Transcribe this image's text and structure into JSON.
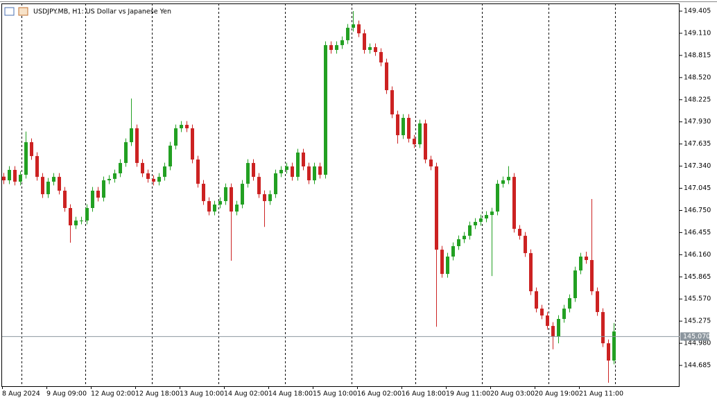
{
  "chart_data": {
    "type": "candlestick",
    "title": "USDJPY.MB, H1:  US Dollar vs Japanese Yen",
    "categories": [
      "8 Aug 2024",
      null,
      null,
      null,
      null,
      null,
      null,
      null,
      "9 Aug 09:00",
      null,
      null,
      null,
      null,
      null,
      null,
      null,
      "12 Aug 02:00",
      null,
      null,
      null,
      null,
      null,
      null,
      null,
      "12 Aug 18:00",
      null,
      null,
      null,
      null,
      null,
      null,
      null,
      "13 Aug 10:00",
      null,
      null,
      null,
      null,
      null,
      null,
      null,
      "14 Aug 02:00",
      null,
      null,
      null,
      null,
      null,
      null,
      null,
      "14 Aug 18:00",
      null,
      null,
      null,
      null,
      null,
      null,
      null,
      "15 Aug 10:00",
      null,
      null,
      null,
      null,
      null,
      null,
      null,
      "16 Aug 02:00",
      null,
      null,
      null,
      null,
      null,
      null,
      null,
      "16 Aug 18:00",
      null,
      null,
      null,
      null,
      null,
      null,
      null,
      "19 Aug 11:00",
      null,
      null,
      null,
      null,
      null,
      null,
      null,
      "20 Aug 03:00",
      null,
      null,
      null,
      null,
      null,
      null,
      null,
      "20 Aug 19:00",
      null,
      null,
      null,
      null,
      null,
      null,
      null,
      "21 Aug 11:00",
      null,
      null,
      null,
      null,
      null,
      null
    ],
    "open": [
      147.2,
      147.151,
      147.29,
      147.133,
      147.225,
      147.659,
      147.474,
      147.197,
      146.966,
      147.133,
      147.197,
      147.013,
      146.782,
      146.551,
      146.615,
      146.615,
      146.782,
      147.013,
      146.92,
      147.151,
      147.17,
      147.244,
      147.382,
      147.659,
      147.844,
      147.382,
      147.244,
      147.17,
      147.133,
      147.197,
      147.336,
      147.613,
      147.844,
      147.89,
      147.844,
      147.428,
      147.105,
      146.874,
      146.735,
      146.828,
      146.874,
      147.059,
      146.735,
      146.828,
      147.105,
      147.382,
      147.197,
      146.966,
      146.874,
      146.966,
      147.244,
      147.29,
      147.336,
      147.197,
      147.521,
      147.336,
      147.151,
      147.336,
      147.225,
      148.952,
      148.888,
      148.952,
      149.017,
      149.183,
      149.229,
      149.109,
      148.888,
      148.925,
      148.86,
      148.721,
      148.352,
      148.029,
      147.752,
      147.983,
      147.705,
      147.631,
      147.909,
      147.428,
      147.336,
      146.227,
      145.904,
      146.135,
      146.274,
      146.366,
      146.412,
      146.551,
      146.597,
      146.643,
      146.689,
      146.735,
      147.105,
      147.151,
      147.197,
      146.505,
      146.412,
      146.181,
      145.673,
      145.442,
      145.35,
      145.211,
      145.073,
      145.304,
      145.442,
      145.581,
      145.95,
      146.135,
      146.089,
      145.673,
      145.396,
      144.98,
      144.75
    ],
    "high": [
      147.25,
      147.34,
      147.34,
      147.275,
      147.8,
      147.709,
      147.524,
      147.247,
      147.183,
      147.247,
      147.247,
      147.063,
      146.832,
      146.665,
      146.665,
      146.832,
      147.063,
      147.063,
      147.201,
      147.22,
      147.294,
      147.432,
      147.709,
      148.24,
      147.894,
      147.432,
      147.294,
      147.22,
      147.247,
      147.386,
      147.663,
      147.894,
      147.94,
      147.94,
      147.894,
      147.478,
      147.155,
      146.924,
      146.878,
      146.924,
      147.109,
      147.109,
      146.878,
      147.155,
      147.432,
      147.432,
      147.247,
      147.016,
      147.016,
      147.294,
      147.34,
      147.386,
      147.386,
      147.571,
      147.571,
      147.386,
      147.386,
      147.386,
      149.002,
      149.002,
      149.002,
      149.067,
      149.233,
      149.405,
      149.279,
      149.159,
      148.975,
      148.975,
      148.91,
      148.771,
      148.402,
      148.079,
      148.033,
      148.033,
      147.755,
      147.959,
      147.959,
      147.478,
      147.386,
      146.277,
      146.185,
      146.324,
      146.416,
      146.462,
      146.601,
      146.647,
      146.693,
      146.739,
      146.785,
      147.155,
      147.201,
      147.34,
      147.247,
      146.555,
      146.462,
      146.231,
      145.723,
      145.492,
      145.4,
      145.261,
      145.354,
      145.492,
      145.631,
      146.0,
      146.185,
      146.2,
      146.902,
      145.723,
      145.446,
      145.03,
      145.25
    ],
    "low": [
      147.101,
      147.101,
      147.083,
      147.083,
      147.175,
      147.424,
      147.147,
      146.916,
      146.916,
      147.083,
      146.963,
      146.732,
      146.32,
      146.501,
      146.565,
      146.565,
      146.732,
      146.87,
      146.87,
      147.101,
      147.12,
      147.194,
      147.332,
      147.609,
      147.332,
      147.194,
      147.12,
      147.083,
      147.083,
      147.147,
      147.286,
      147.563,
      147.794,
      147.794,
      147.378,
      147.055,
      146.824,
      146.685,
      146.685,
      146.778,
      146.824,
      146.08,
      146.685,
      146.778,
      147.055,
      147.147,
      146.916,
      146.53,
      146.824,
      146.916,
      147.194,
      147.24,
      147.147,
      147.147,
      147.286,
      147.101,
      147.101,
      147.175,
      147.175,
      148.838,
      148.838,
      148.902,
      148.967,
      149.133,
      149.059,
      148.838,
      148.838,
      148.81,
      148.671,
      148.302,
      147.979,
      147.64,
      147.702,
      147.655,
      147.581,
      147.581,
      147.378,
      147.286,
      145.2,
      145.854,
      145.854,
      146.085,
      146.224,
      146.316,
      146.362,
      146.501,
      146.547,
      146.593,
      145.876,
      146.685,
      147.055,
      147.101,
      146.455,
      146.362,
      146.131,
      145.623,
      145.392,
      145.3,
      145.161,
      144.9,
      144.98,
      145.254,
      145.392,
      145.531,
      145.9,
      146.039,
      145.623,
      145.346,
      144.93,
      144.454,
      144.7
    ],
    "close": [
      147.151,
      147.29,
      147.133,
      147.225,
      147.659,
      147.474,
      147.197,
      146.966,
      147.133,
      147.197,
      147.013,
      146.782,
      146.551,
      146.615,
      146.615,
      146.782,
      147.013,
      146.92,
      147.151,
      147.17,
      147.244,
      147.382,
      147.659,
      147.844,
      147.382,
      147.244,
      147.17,
      147.133,
      147.197,
      147.336,
      147.613,
      147.844,
      147.89,
      147.844,
      147.428,
      147.105,
      146.874,
      146.735,
      146.828,
      146.874,
      147.059,
      146.735,
      146.828,
      147.105,
      147.382,
      147.197,
      146.966,
      146.874,
      146.966,
      147.244,
      147.29,
      147.336,
      147.197,
      147.521,
      147.336,
      147.151,
      147.336,
      147.225,
      148.952,
      148.888,
      148.952,
      149.017,
      149.183,
      149.229,
      149.109,
      148.888,
      148.925,
      148.86,
      148.721,
      148.352,
      148.029,
      147.752,
      147.983,
      147.705,
      147.631,
      147.909,
      147.428,
      147.336,
      146.227,
      145.904,
      146.135,
      146.274,
      146.366,
      146.412,
      146.551,
      146.597,
      146.643,
      146.689,
      146.735,
      147.105,
      147.151,
      147.197,
      146.505,
      146.412,
      146.181,
      145.673,
      145.442,
      145.35,
      145.211,
      145.073,
      145.304,
      145.442,
      145.581,
      145.95,
      146.135,
      146.089,
      145.673,
      145.396,
      144.98,
      144.75,
      145.137
    ],
    "up_color": "#22a022",
    "down_color": "#cc2222",
    "ylim": [
      144.408,
      149.507
    ],
    "yticks": [
      149.405,
      {
        "value": 149.11,
        "label": "149.110"
      },
      148.815,
      {
        "value": 148.52,
        "label": "148.520"
      },
      148.225,
      {
        "value": 147.93,
        "label": "147.930"
      },
      147.635,
      {
        "value": 147.34,
        "label": "147.340"
      },
      147.045,
      {
        "value": 146.75,
        "label": "146.750"
      },
      146.455,
      {
        "value": 146.16,
        "label": "146.160"
      },
      145.865,
      {
        "value": 145.57,
        "label": "145.570"
      },
      145.275,
      {
        "value": 144.98,
        "label": "144.980"
      },
      144.685
    ],
    "price_line": {
      "value": 145.07,
      "label": "145.070"
    }
  }
}
